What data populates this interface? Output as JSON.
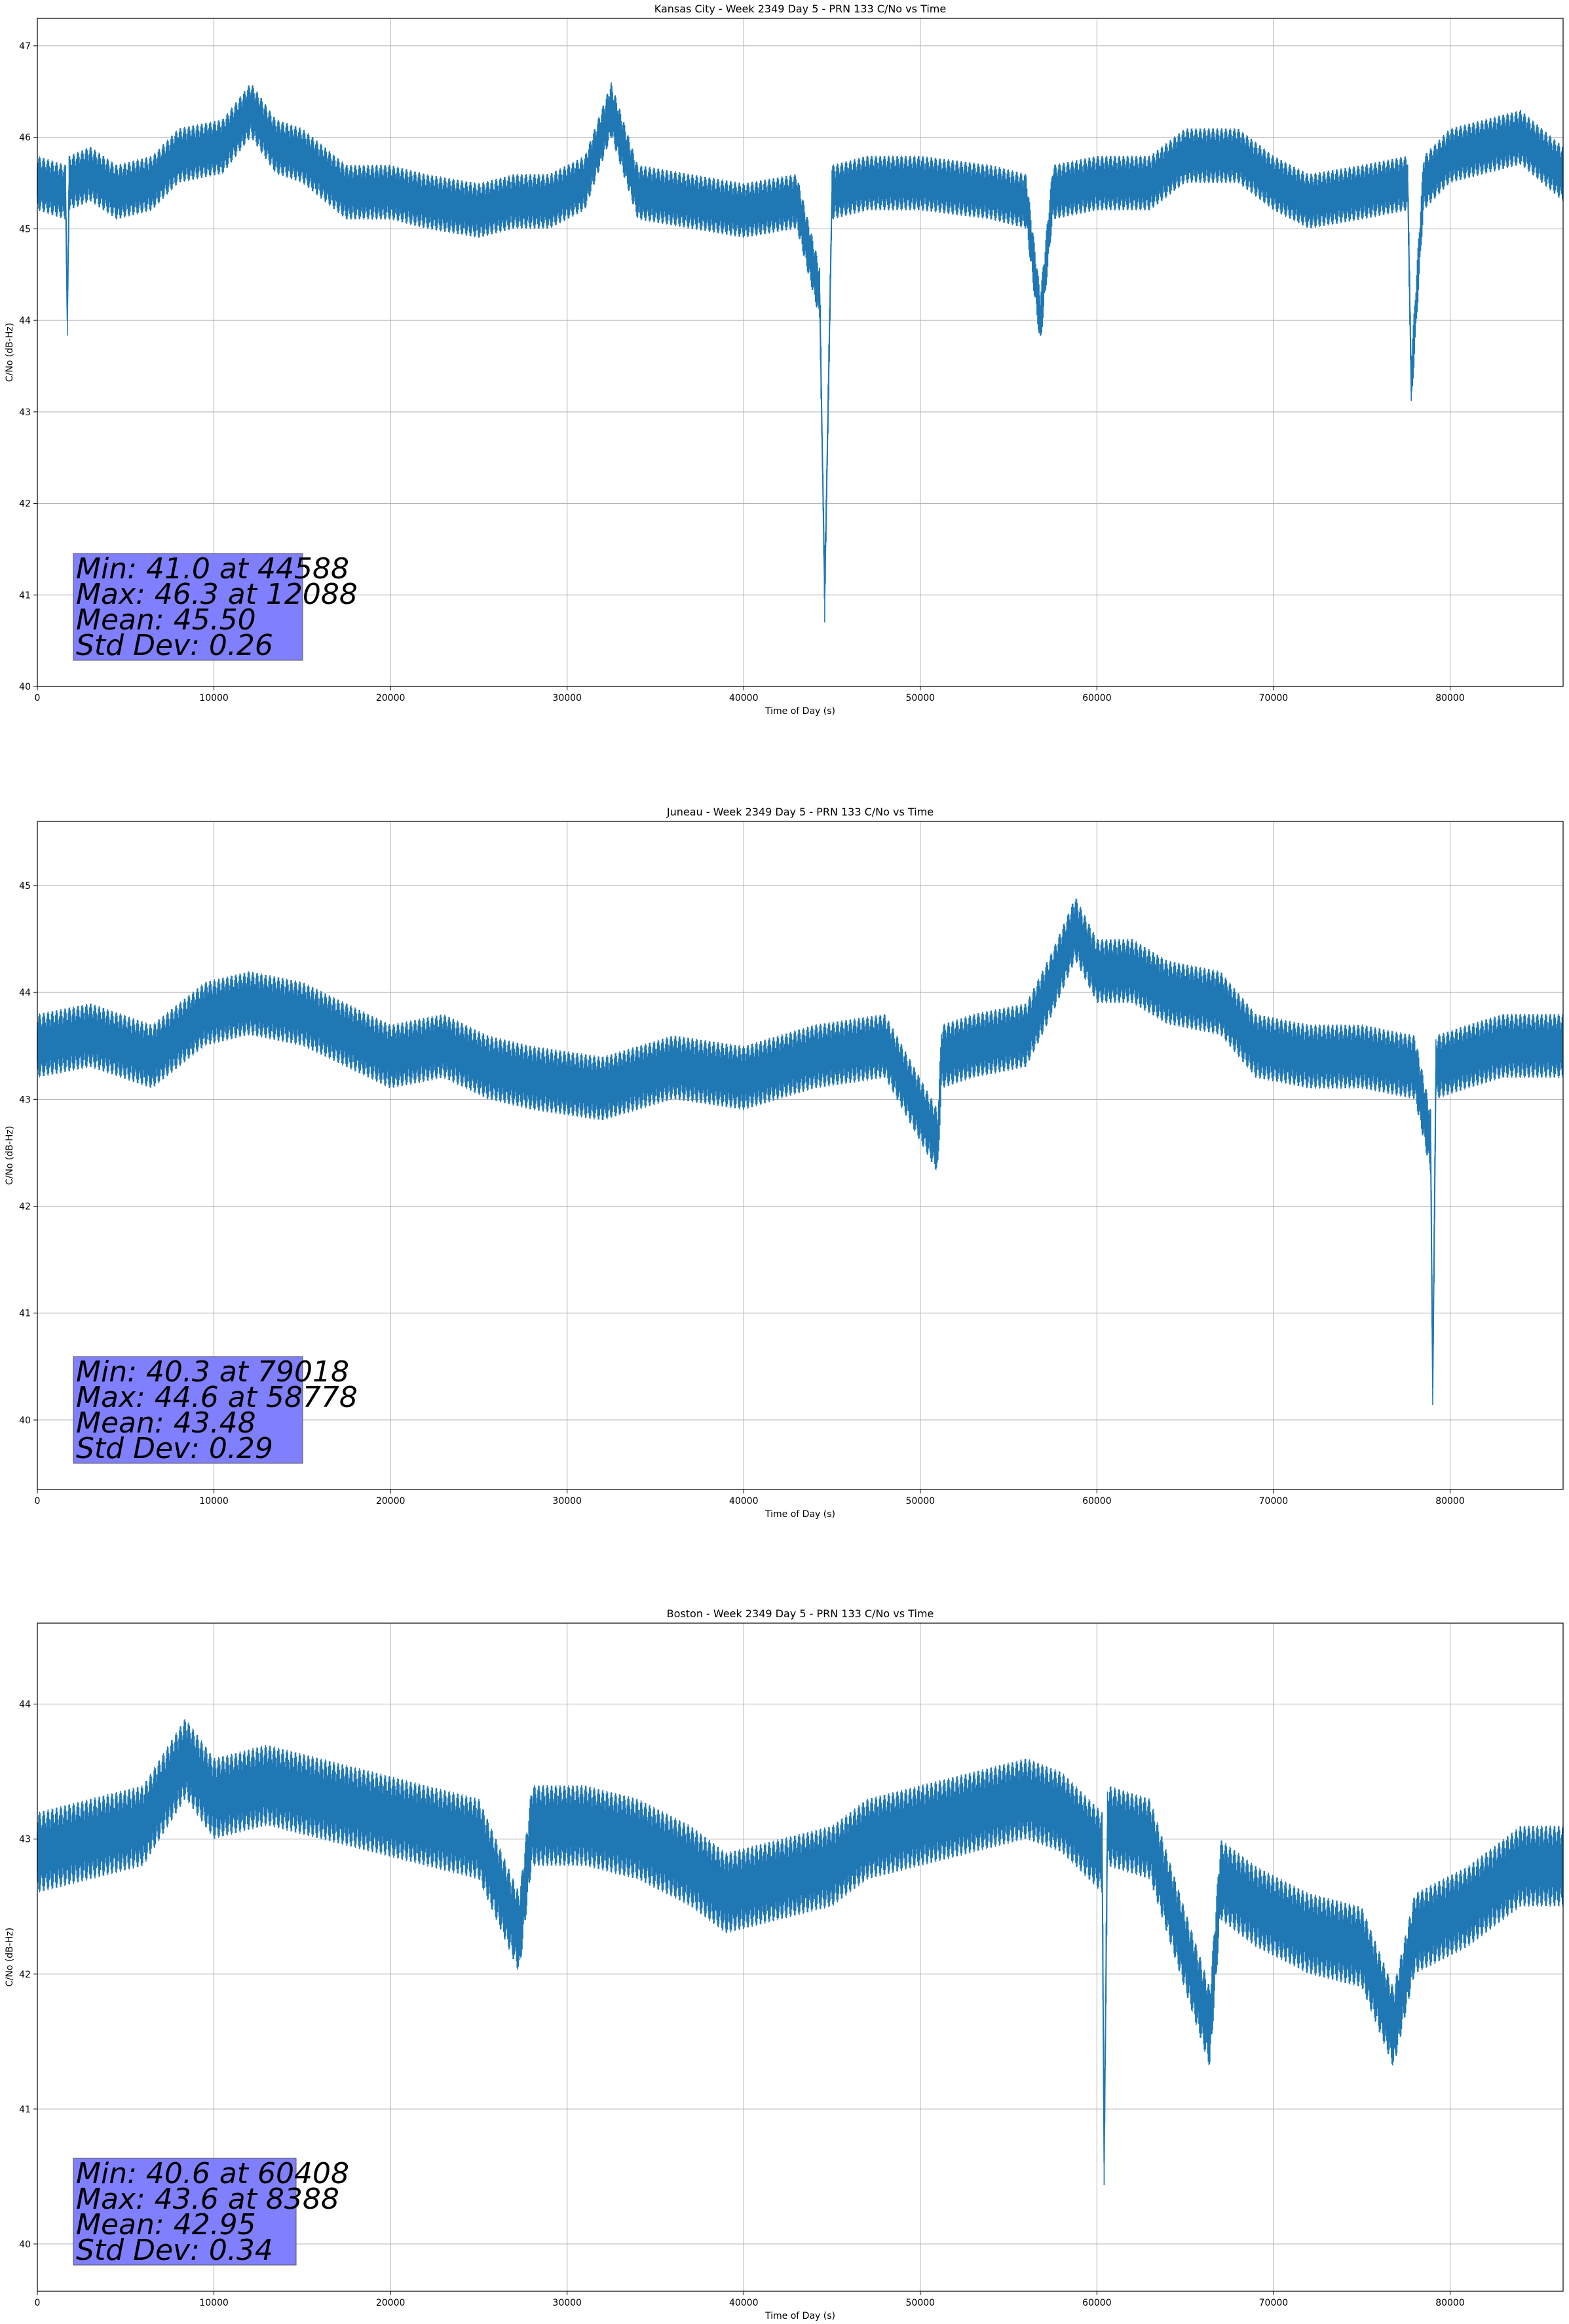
{
  "chart_data": [
    {
      "type": "line",
      "title": "Kansas City - Week 2349 Day 5 - PRN 133 C/No vs Time",
      "xlabel": "Time of Day (s)",
      "ylabel": "C/No (dB-Hz)",
      "xlim": [
        0,
        86400
      ],
      "ylim": [
        40,
        47.3
      ],
      "xticks": [
        0,
        10000,
        20000,
        30000,
        40000,
        50000,
        60000,
        70000,
        80000
      ],
      "yticks": [
        40,
        41,
        42,
        43,
        44,
        45,
        46,
        47
      ],
      "grid": true,
      "series_color": "#1f77b4",
      "series": [
        {
          "x": [
            0,
            1600,
            1700,
            1800,
            3000,
            4500,
            6500,
            8000,
            10500,
            12088,
            13500,
            15000,
            17500,
            20000,
            22000,
            25000,
            27000,
            29000,
            31000,
            32500,
            34000,
            37000,
            40000,
            43000,
            44300,
            44588,
            45000,
            47000,
            50000,
            54000,
            56000,
            56800,
            57500,
            60000,
            63000,
            65000,
            68000,
            70000,
            72000,
            75000,
            77600,
            77800,
            78500,
            80000,
            82000,
            84000,
            86400
          ],
          "y": [
            45.5,
            45.4,
            44.0,
            45.5,
            45.6,
            45.4,
            45.5,
            45.8,
            45.9,
            46.3,
            45.9,
            45.8,
            45.4,
            45.4,
            45.3,
            45.2,
            45.3,
            45.3,
            45.5,
            46.3,
            45.4,
            45.3,
            45.2,
            45.3,
            44.3,
            41.0,
            45.4,
            45.5,
            45.5,
            45.4,
            45.3,
            44.0,
            45.4,
            45.5,
            45.5,
            45.8,
            45.8,
            45.5,
            45.3,
            45.4,
            45.5,
            43.3,
            45.5,
            45.8,
            45.9,
            46.0,
            45.6
          ]
        }
      ],
      "annotation": [
        "Min: 41.0 at 44588",
        "Max: 46.3 at 12088",
        "Mean: 45.50",
        "Std Dev: 0.26"
      ]
    },
    {
      "type": "line",
      "title": "Juneau - Week 2349 Day 5 - PRN 133 C/No vs Time",
      "xlabel": "Time of Day (s)",
      "ylabel": "C/No (dB-Hz)",
      "xlim": [
        0,
        86400
      ],
      "ylim": [
        39.35,
        45.6
      ],
      "xticks": [
        0,
        10000,
        20000,
        30000,
        40000,
        50000,
        60000,
        70000,
        80000
      ],
      "yticks": [
        40,
        41,
        42,
        43,
        44,
        45
      ],
      "grid": true,
      "series_color": "#1f77b4",
      "series": [
        {
          "x": [
            0,
            3000,
            6500,
            9500,
            12000,
            15000,
            17500,
            20000,
            23000,
            25500,
            28000,
            32000,
            36000,
            40000,
            44000,
            48000,
            51000,
            51200,
            53000,
            56000,
            57500,
            58778,
            60000,
            62000,
            64000,
            67000,
            69000,
            72000,
            75000,
            78000,
            78900,
            79018,
            79200,
            81000,
            83000,
            86400
          ],
          "y": [
            43.5,
            43.6,
            43.4,
            43.8,
            43.9,
            43.8,
            43.6,
            43.4,
            43.5,
            43.3,
            43.2,
            43.1,
            43.3,
            43.2,
            43.4,
            43.5,
            42.6,
            43.4,
            43.5,
            43.6,
            44.1,
            44.6,
            44.2,
            44.2,
            44.0,
            43.9,
            43.5,
            43.4,
            43.4,
            43.3,
            42.6,
            40.3,
            43.3,
            43.4,
            43.5,
            43.5
          ]
        }
      ],
      "annotation": [
        "Min: 40.3 at 79018",
        "Max: 44.6 at 58778",
        "Mean: 43.48",
        "Std Dev: 0.29"
      ]
    },
    {
      "type": "line",
      "title": "Boston - Week 2349 Day 5 - PRN 133 C/No vs Time",
      "xlabel": "Time of Day (s)",
      "ylabel": "C/No (dB-Hz)",
      "xlim": [
        0,
        86400
      ],
      "ylim": [
        39.65,
        44.6
      ],
      "xticks": [
        0,
        10000,
        20000,
        30000,
        40000,
        50000,
        60000,
        70000,
        80000
      ],
      "yticks": [
        40,
        41,
        42,
        43,
        44
      ],
      "grid": true,
      "series_color": "#1f77b4",
      "series": [
        {
          "x": [
            0,
            3000,
            6000,
            8388,
            10000,
            13000,
            16000,
            19000,
            22000,
            25000,
            27300,
            28000,
            31000,
            34000,
            37000,
            39000,
            42000,
            45000,
            47000,
            50000,
            53000,
            56000,
            58000,
            60300,
            60408,
            60600,
            63000,
            66400,
            67000,
            69000,
            72000,
            75000,
            76800,
            78000,
            81000,
            84000,
            86400
          ],
          "y": [
            42.9,
            43.0,
            43.1,
            43.6,
            43.3,
            43.4,
            43.3,
            43.2,
            43.1,
            43.0,
            42.3,
            43.1,
            43.1,
            43.0,
            42.8,
            42.6,
            42.7,
            42.8,
            43.0,
            43.1,
            43.2,
            43.3,
            43.2,
            42.9,
            40.6,
            43.1,
            43.0,
            41.6,
            42.7,
            42.5,
            42.3,
            42.2,
            41.6,
            42.3,
            42.5,
            42.8,
            42.8
          ]
        }
      ],
      "annotation": [
        "Min: 40.6 at 60408",
        "Max: 43.6 at 8388",
        "Mean: 42.95",
        "Std Dev: 0.34"
      ]
    }
  ]
}
